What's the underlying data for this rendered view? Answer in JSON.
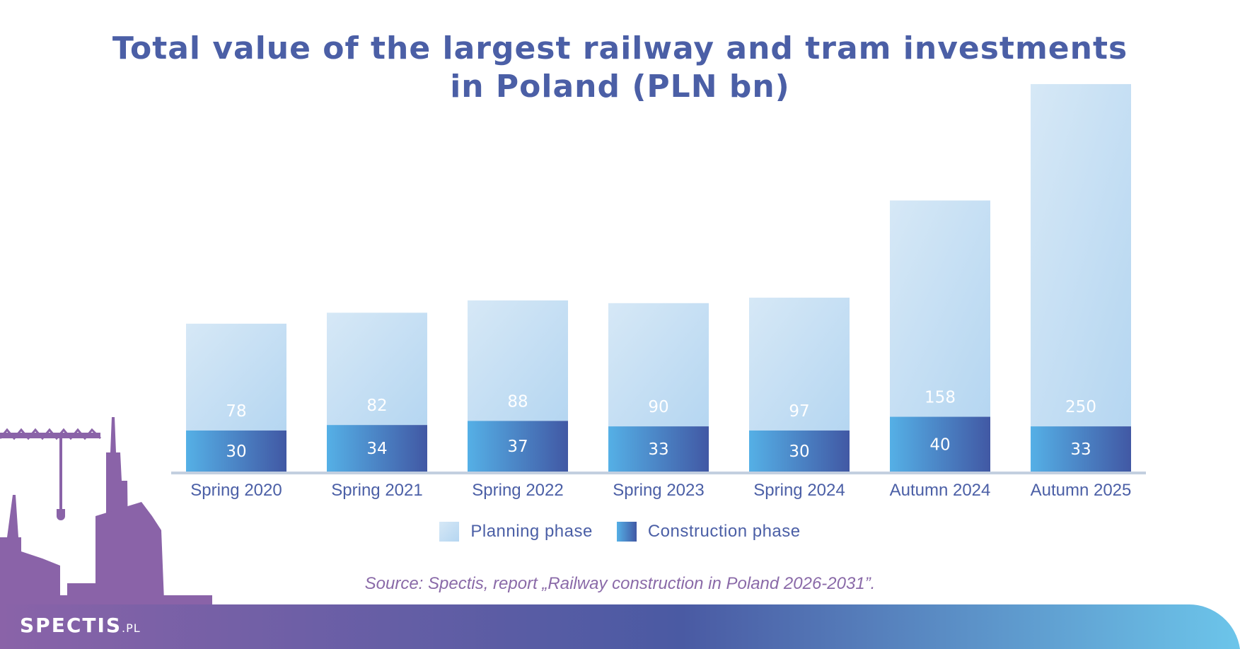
{
  "title_lines": [
    "Total value of the largest railway and tram investments",
    "in Poland (PLN bn)"
  ],
  "legend": [
    {
      "label": "Planning phase",
      "color": "#c5dff3"
    },
    {
      "label": "Construction phase",
      "color": "#3f78c4"
    }
  ],
  "source": "Source: Spectis, report „Railway construction in Poland 2026-2031”.",
  "brand": {
    "name": "SPECTIS",
    "tld": ".PL"
  },
  "colors": {
    "title": "#4b5fa6",
    "planning_top": "#d6e8f6",
    "planning_bottom": "#b5d6f1",
    "construction_left": "#55b0e6",
    "construction_right": "#4158a4",
    "axis": "#c3cfe0",
    "footer_left": "#8a63a8",
    "footer_mid": "#4a5aa3",
    "footer_right": "#6cc5ea"
  },
  "chart_data": {
    "type": "bar",
    "stacked": true,
    "categories": [
      "Spring 2020",
      "Spring 2021",
      "Spring 2022",
      "Spring 2023",
      "Spring 2024",
      "Autumn 2024",
      "Autumn 2025"
    ],
    "series": [
      {
        "name": "Construction phase",
        "values": [
          30,
          34,
          37,
          33,
          30,
          40,
          33
        ]
      },
      {
        "name": "Planning phase",
        "values": [
          78,
          82,
          88,
          90,
          97,
          158,
          250
        ]
      }
    ],
    "ylim": [
      0,
      290
    ],
    "grid": false,
    "legend_position": "bottom"
  }
}
